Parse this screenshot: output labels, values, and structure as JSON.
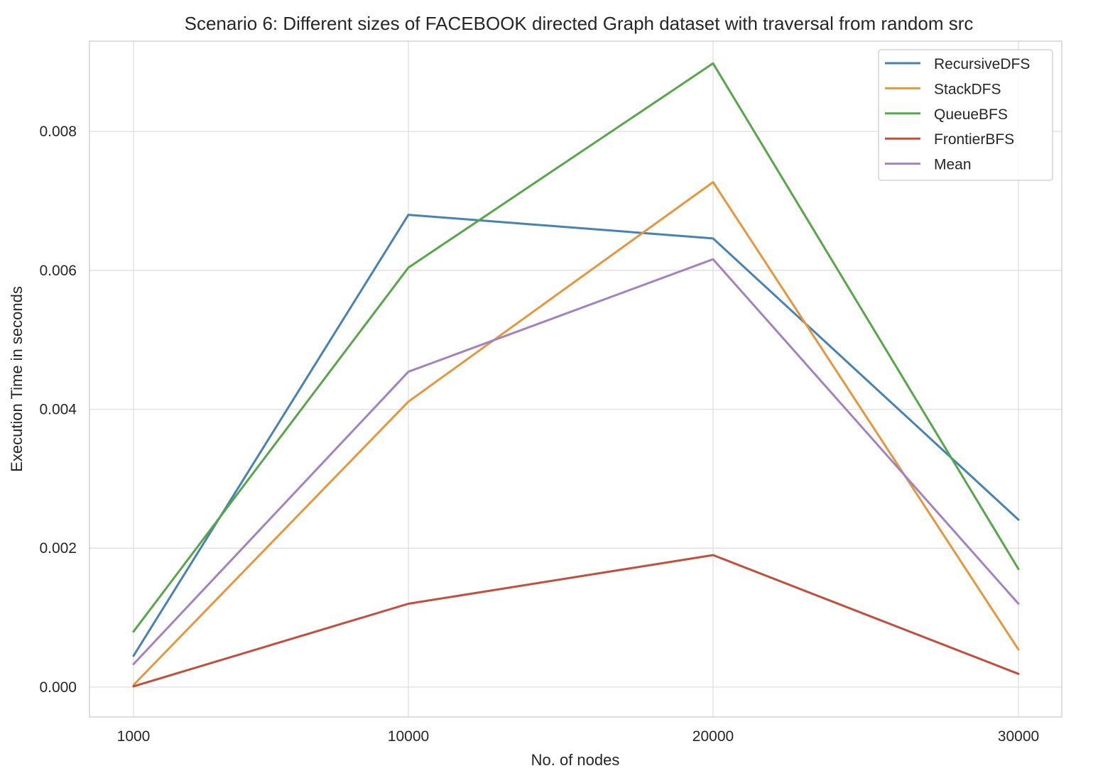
{
  "chart_data": {
    "type": "line",
    "title": "Scenario 6: Different sizes of FACEBOOK directed Graph dataset with traversal from random src",
    "xlabel": "No. of nodes",
    "ylabel": "Execution Time in seconds",
    "categories": [
      "1000",
      "10000",
      "20000",
      "30000"
    ],
    "y_ticks": [
      "0.000",
      "0.002",
      "0.004",
      "0.006",
      "0.008"
    ],
    "ylim": [
      -0.00043,
      0.0093
    ],
    "grid": true,
    "legend_position": "top-right",
    "series": [
      {
        "name": "RecursiveDFS",
        "color": "#4682b4",
        "values": [
          0.00045,
          0.0068,
          0.00646,
          0.00241
        ]
      },
      {
        "name": "StackDFS",
        "color": "#e8963c",
        "values": [
          3e-05,
          0.00411,
          0.00727,
          0.00054
        ]
      },
      {
        "name": "QueueBFS",
        "color": "#57a64a",
        "values": [
          0.0008,
          0.00604,
          0.00898,
          0.0017
        ]
      },
      {
        "name": "FrontierBFS",
        "color": "#c44e3e",
        "values": [
          1e-05,
          0.0012,
          0.0019,
          0.00019
        ]
      },
      {
        "name": "Mean",
        "color": "#a283c0",
        "values": [
          0.00033,
          0.00454,
          0.00616,
          0.0012
        ]
      }
    ]
  }
}
